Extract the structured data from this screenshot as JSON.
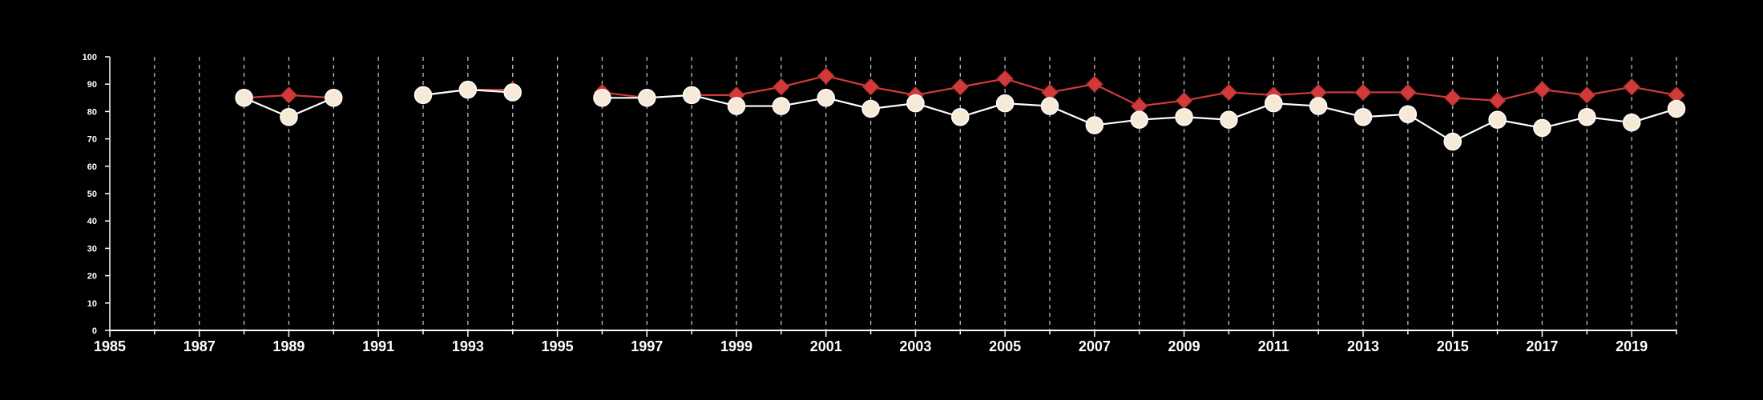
{
  "chart_data": {
    "type": "line",
    "title": "",
    "xlabel": "",
    "ylabel": "",
    "xlim": [
      1985,
      2020
    ],
    "ylim": [
      0,
      100
    ],
    "x_ticks": [
      1985,
      1987,
      1989,
      1991,
      1993,
      1995,
      1997,
      1999,
      2001,
      2003,
      2005,
      2007,
      2009,
      2011,
      2013,
      2015,
      2017,
      2019
    ],
    "y_ticks": [
      0,
      10,
      20,
      30,
      40,
      50,
      60,
      70,
      80,
      90,
      100
    ],
    "vertical_grid": "dashed, every year from 1986 to 2020",
    "legend": "none",
    "series": [
      {
        "marker": "circle",
        "color": "#ffffff",
        "marker_fill": "#f7e9d7",
        "points": [
          [
            1988,
            85
          ],
          [
            1989,
            78
          ],
          [
            1990,
            85
          ],
          [
            1992,
            86
          ],
          [
            1993,
            88
          ],
          [
            1994,
            87
          ],
          [
            1996,
            85
          ],
          [
            1997,
            85
          ],
          [
            1998,
            86
          ],
          [
            1999,
            82
          ],
          [
            2000,
            82
          ],
          [
            2001,
            85
          ],
          [
            2002,
            81
          ],
          [
            2003,
            83
          ],
          [
            2004,
            78
          ],
          [
            2005,
            83
          ],
          [
            2006,
            82
          ],
          [
            2007,
            75
          ],
          [
            2008,
            77
          ],
          [
            2009,
            78
          ],
          [
            2010,
            77
          ],
          [
            2011,
            83
          ],
          [
            2012,
            82
          ],
          [
            2013,
            78
          ],
          [
            2014,
            79
          ],
          [
            2015,
            69
          ],
          [
            2016,
            77
          ],
          [
            2017,
            74
          ],
          [
            2018,
            78
          ],
          [
            2019,
            76
          ],
          [
            2020,
            81
          ]
        ]
      },
      {
        "marker": "diamond",
        "color": "#d03a3a",
        "marker_fill": "#d03a3a",
        "points": [
          [
            1988,
            85
          ],
          [
            1989,
            86
          ],
          [
            1990,
            85
          ],
          [
            1992,
            86
          ],
          [
            1993,
            88
          ],
          [
            1994,
            88
          ],
          [
            1996,
            87
          ],
          [
            1997,
            85
          ],
          [
            1998,
            86
          ],
          [
            1999,
            86
          ],
          [
            2000,
            89
          ],
          [
            2001,
            93
          ],
          [
            2002,
            89
          ],
          [
            2003,
            86
          ],
          [
            2004,
            89
          ],
          [
            2005,
            92
          ],
          [
            2006,
            87
          ],
          [
            2007,
            90
          ],
          [
            2008,
            82
          ],
          [
            2009,
            84
          ],
          [
            2010,
            87
          ],
          [
            2011,
            86
          ],
          [
            2012,
            87
          ],
          [
            2013,
            87
          ],
          [
            2014,
            87
          ],
          [
            2015,
            85
          ],
          [
            2016,
            84
          ],
          [
            2017,
            88
          ],
          [
            2018,
            86
          ],
          [
            2019,
            89
          ],
          [
            2020,
            86
          ]
        ]
      }
    ]
  }
}
